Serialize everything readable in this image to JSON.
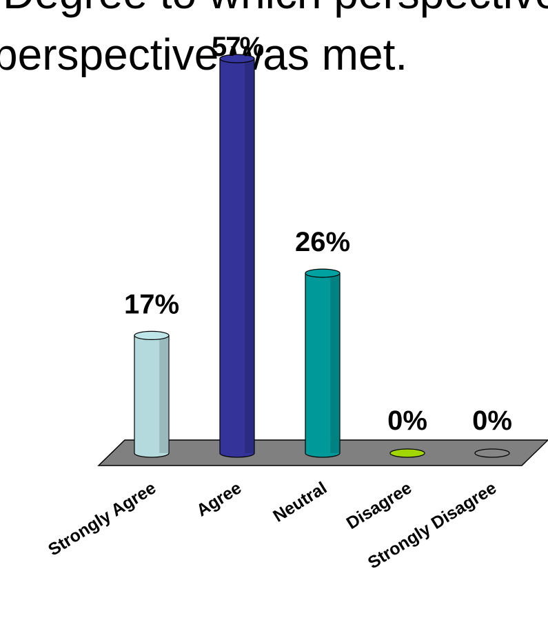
{
  "slide": {
    "title_line1": "Degree to which perspective",
    "title_line2_part1": "perspective",
    "title_line2_part2": " was met."
  },
  "chart_data": {
    "type": "bar",
    "categories": [
      "Strongly Agree",
      "Agree",
      "Neutral",
      "Disagree",
      "Strongly Disagree"
    ],
    "values": [
      17,
      57,
      26,
      0,
      0
    ],
    "data_labels": [
      "17%",
      "57%",
      "26%",
      "0%",
      "0%"
    ],
    "colors": [
      "#b5dadd",
      "#333399",
      "#009999",
      "#99cc00",
      "#808080"
    ],
    "floor_color": "#808080",
    "ylim": [
      0,
      57
    ],
    "grid": false,
    "legend": "none",
    "title": "",
    "xlabel": "",
    "ylabel": ""
  }
}
